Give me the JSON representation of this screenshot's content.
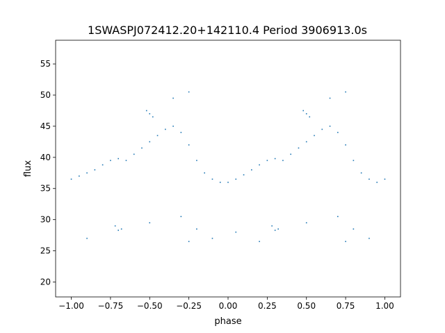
{
  "chart_data": {
    "type": "scatter",
    "title": "1SWASPJ072412.20+142110.4 Period 3906913.0s",
    "xlabel": "phase",
    "ylabel": "flux",
    "xlim": [
      -1.1,
      1.1
    ],
    "ylim": [
      17.6,
      58.8
    ],
    "xticks": [
      -1.0,
      -0.75,
      -0.5,
      -0.25,
      0.0,
      0.25,
      0.5,
      0.75,
      1.0
    ],
    "xtick_labels": [
      "−1.00",
      "−0.75",
      "−0.50",
      "−0.25",
      "0.00",
      "0.25",
      "0.50",
      "0.75",
      "1.00"
    ],
    "yticks": [
      20,
      25,
      30,
      35,
      40,
      45,
      50,
      55
    ],
    "ytick_labels": [
      "20",
      "25",
      "30",
      "35",
      "40",
      "45",
      "50",
      "55"
    ],
    "grid": false,
    "legend": "none",
    "point_color": "#1f77b4",
    "series": [
      {
        "x": [
          -1.0,
          -0.95,
          -0.9,
          -0.85,
          -0.8,
          -0.75,
          -0.7,
          -0.65,
          -0.6,
          -0.55,
          -0.5,
          -0.45,
          -0.4,
          -0.35,
          -0.3,
          -0.25,
          -0.2,
          -0.15,
          -0.1,
          -0.05,
          0.0,
          0.05,
          0.1,
          0.15,
          0.2,
          0.25,
          0.3,
          0.35,
          0.4,
          0.45,
          0.5,
          0.55,
          0.6,
          0.65,
          0.7,
          0.75,
          0.8,
          0.85,
          0.9,
          0.95,
          1.0
        ],
        "y": [
          36.5,
          37.0,
          37.5,
          38.0,
          38.8,
          39.5,
          39.8,
          39.5,
          40.5,
          41.5,
          42.5,
          43.5,
          44.5,
          45.0,
          44.0,
          42.0,
          39.5,
          37.5,
          36.5,
          36.0,
          36.0,
          36.5,
          37.2,
          38.0,
          38.8,
          39.5,
          39.8,
          39.5,
          40.5,
          41.5,
          42.5,
          43.5,
          44.5,
          45.0,
          44.0,
          42.0,
          39.5,
          37.5,
          36.5,
          36.0,
          36.5
        ]
      },
      {
        "x": [
          -0.9,
          -0.72,
          -0.7,
          -0.68,
          -0.5,
          -0.3,
          -0.25,
          -0.2,
          -0.1,
          0.05,
          0.2,
          0.28,
          0.3,
          0.32,
          0.5,
          0.7,
          0.75,
          0.8,
          0.9
        ],
        "y": [
          27.0,
          29.0,
          28.3,
          28.5,
          29.5,
          30.5,
          26.5,
          28.5,
          27.0,
          28.0,
          26.5,
          29.0,
          28.3,
          28.5,
          29.5,
          30.5,
          26.5,
          28.5,
          27.0
        ]
      },
      {
        "x": [
          -0.52,
          -0.5,
          -0.48,
          -0.35,
          -0.25,
          0.48,
          0.5,
          0.52,
          0.65,
          0.75
        ],
        "y": [
          47.5,
          47.0,
          46.5,
          49.5,
          50.5,
          47.5,
          47.0,
          46.5,
          49.5,
          50.5
        ]
      }
    ]
  }
}
